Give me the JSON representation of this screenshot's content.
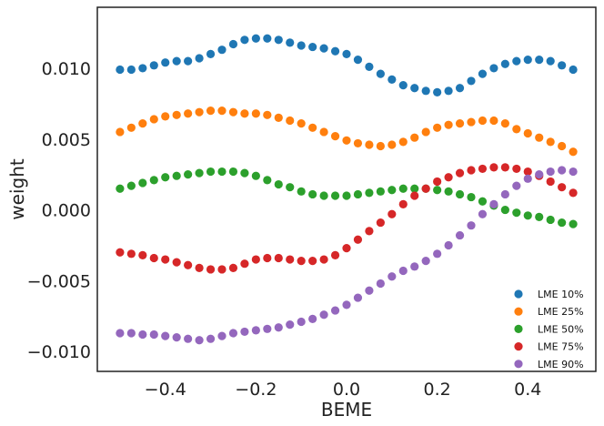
{
  "chart_data": {
    "type": "scatter",
    "title": "",
    "xlabel": "BEME",
    "ylabel": "weight",
    "xlim": [
      -0.55,
      0.55
    ],
    "ylim": [
      -0.0114,
      0.0143
    ],
    "xticks": [
      -0.4,
      -0.2,
      0.0,
      0.2,
      0.4
    ],
    "xtick_labels": [
      "−0.4",
      "−0.2",
      "0.0",
      "0.2",
      "0.4"
    ],
    "yticks": [
      0.01,
      0.005,
      0.0,
      -0.005,
      -0.01
    ],
    "ytick_labels": [
      "0.010",
      "0.005",
      "0.000",
      "−0.005",
      "−0.010"
    ],
    "grid": false,
    "legend_position": "lower-right",
    "x": [
      -0.5,
      -0.475,
      -0.45,
      -0.425,
      -0.4,
      -0.375,
      -0.35,
      -0.325,
      -0.3,
      -0.275,
      -0.25,
      -0.225,
      -0.2,
      -0.175,
      -0.15,
      -0.125,
      -0.1,
      -0.075,
      -0.05,
      -0.025,
      0.0,
      0.025,
      0.05,
      0.075,
      0.1,
      0.125,
      0.15,
      0.175,
      0.2,
      0.225,
      0.25,
      0.275,
      0.3,
      0.325,
      0.35,
      0.375,
      0.4,
      0.425,
      0.45,
      0.475,
      0.5
    ],
    "series": [
      {
        "name": "LME 10%",
        "color": "#1f77b4",
        "values": [
          0.0099,
          0.0099,
          0.01,
          0.0102,
          0.0104,
          0.0105,
          0.0105,
          0.0107,
          0.011,
          0.0113,
          0.0117,
          0.012,
          0.0121,
          0.0121,
          0.012,
          0.0118,
          0.0116,
          0.0115,
          0.0114,
          0.0112,
          0.011,
          0.0106,
          0.0101,
          0.0096,
          0.0092,
          0.0088,
          0.0086,
          0.0084,
          0.0083,
          0.0084,
          0.0086,
          0.0091,
          0.0096,
          0.01,
          0.0103,
          0.0105,
          0.0106,
          0.0106,
          0.0105,
          0.0102,
          0.0099
        ]
      },
      {
        "name": "LME 25%",
        "color": "#ff7f0e",
        "values": [
          0.0055,
          0.0058,
          0.0061,
          0.0064,
          0.0066,
          0.0067,
          0.0068,
          0.0069,
          0.007,
          0.007,
          0.0069,
          0.0068,
          0.0068,
          0.0067,
          0.0065,
          0.0063,
          0.0061,
          0.0058,
          0.0055,
          0.0052,
          0.0049,
          0.0047,
          0.0046,
          0.0045,
          0.0046,
          0.0048,
          0.0051,
          0.0055,
          0.0058,
          0.006,
          0.0061,
          0.0062,
          0.0063,
          0.0063,
          0.0061,
          0.0057,
          0.0054,
          0.0051,
          0.0048,
          0.0045,
          0.0041
        ]
      },
      {
        "name": "LME 50%",
        "color": "#2ca02c",
        "values": [
          0.0015,
          0.0017,
          0.0019,
          0.0021,
          0.0023,
          0.0024,
          0.0025,
          0.0026,
          0.0027,
          0.0027,
          0.0027,
          0.0026,
          0.0024,
          0.0021,
          0.0018,
          0.0016,
          0.0013,
          0.0011,
          0.001,
          0.001,
          0.001,
          0.0011,
          0.0012,
          0.0013,
          0.0014,
          0.0015,
          0.0015,
          0.0015,
          0.0014,
          0.0013,
          0.0011,
          0.0009,
          0.0006,
          0.0003,
          0.0,
          -0.0002,
          -0.0004,
          -0.0005,
          -0.0007,
          -0.0009,
          -0.001
        ]
      },
      {
        "name": "LME 75%",
        "color": "#d62728",
        "values": [
          -0.003,
          -0.0031,
          -0.0032,
          -0.0034,
          -0.0035,
          -0.0037,
          -0.0039,
          -0.0041,
          -0.0042,
          -0.0042,
          -0.0041,
          -0.0038,
          -0.0035,
          -0.0034,
          -0.0034,
          -0.0035,
          -0.0036,
          -0.0036,
          -0.0035,
          -0.0032,
          -0.0027,
          -0.0021,
          -0.0015,
          -0.0009,
          -0.0003,
          0.0004,
          0.001,
          0.0015,
          0.002,
          0.0023,
          0.0026,
          0.0028,
          0.0029,
          0.003,
          0.003,
          0.0029,
          0.0027,
          0.0024,
          0.002,
          0.0016,
          0.0012
        ]
      },
      {
        "name": "LME 90%",
        "color": "#9467bd",
        "values": [
          -0.0087,
          -0.0087,
          -0.0088,
          -0.0088,
          -0.0089,
          -0.009,
          -0.0091,
          -0.0092,
          -0.0091,
          -0.0089,
          -0.0087,
          -0.0086,
          -0.0085,
          -0.0084,
          -0.0083,
          -0.0081,
          -0.0079,
          -0.0077,
          -0.0074,
          -0.0071,
          -0.0067,
          -0.0062,
          -0.0057,
          -0.0052,
          -0.0047,
          -0.0043,
          -0.004,
          -0.0036,
          -0.0031,
          -0.0025,
          -0.0018,
          -0.0011,
          -0.0003,
          0.0004,
          0.0011,
          0.0017,
          0.0022,
          0.0025,
          0.0027,
          0.0028,
          0.0027
        ]
      }
    ]
  }
}
